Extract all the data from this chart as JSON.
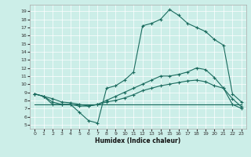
{
  "xlabel": "Humidex (Indice chaleur)",
  "bg_color": "#cceee8",
  "line_color": "#1a6b5e",
  "x_ticks": [
    0,
    1,
    2,
    3,
    4,
    5,
    6,
    7,
    8,
    9,
    10,
    11,
    12,
    13,
    14,
    15,
    16,
    17,
    18,
    19,
    20,
    21,
    22,
    23
  ],
  "y_ticks": [
    5,
    6,
    7,
    8,
    9,
    10,
    11,
    12,
    13,
    14,
    15,
    16,
    17,
    18,
    19
  ],
  "ylim": [
    4.5,
    19.8
  ],
  "xlim": [
    -0.5,
    23.5
  ],
  "series1_x": [
    0,
    1,
    2,
    3,
    4,
    5,
    6,
    7,
    8,
    9,
    10,
    11,
    12,
    13,
    14,
    15,
    16,
    17,
    18,
    19,
    20,
    21,
    22,
    23
  ],
  "series1_y": [
    8.8,
    8.5,
    7.5,
    7.5,
    7.5,
    6.5,
    5.5,
    5.2,
    9.5,
    9.8,
    10.5,
    11.5,
    17.2,
    17.5,
    18.0,
    19.2,
    18.5,
    17.5,
    17.0,
    16.5,
    15.5,
    14.8,
    8.8,
    7.8
  ],
  "series2_x": [
    0,
    1,
    2,
    3,
    4,
    5,
    6,
    7,
    8,
    9,
    10,
    11,
    12,
    13,
    14,
    15,
    16,
    17,
    18,
    19,
    20,
    21,
    22,
    23
  ],
  "series2_y": [
    8.8,
    8.5,
    7.8,
    7.5,
    7.5,
    7.3,
    7.3,
    7.5,
    8.0,
    8.5,
    9.0,
    9.5,
    10.0,
    10.5,
    11.0,
    11.0,
    11.2,
    11.5,
    12.0,
    11.8,
    10.8,
    9.5,
    8.2,
    7.2
  ],
  "series3_x": [
    0,
    1,
    2,
    3,
    4,
    5,
    6,
    7,
    8,
    9,
    10,
    11,
    12,
    13,
    14,
    15,
    16,
    17,
    18,
    19,
    20,
    21,
    22,
    23
  ],
  "series3_y": [
    8.8,
    8.5,
    8.2,
    7.8,
    7.7,
    7.5,
    7.3,
    7.5,
    7.8,
    8.0,
    8.3,
    8.7,
    9.2,
    9.5,
    9.8,
    10.0,
    10.2,
    10.4,
    10.5,
    10.3,
    9.8,
    9.5,
    7.5,
    7.0
  ],
  "series4_x": [
    0,
    23
  ],
  "series4_y": [
    7.5,
    7.5
  ]
}
